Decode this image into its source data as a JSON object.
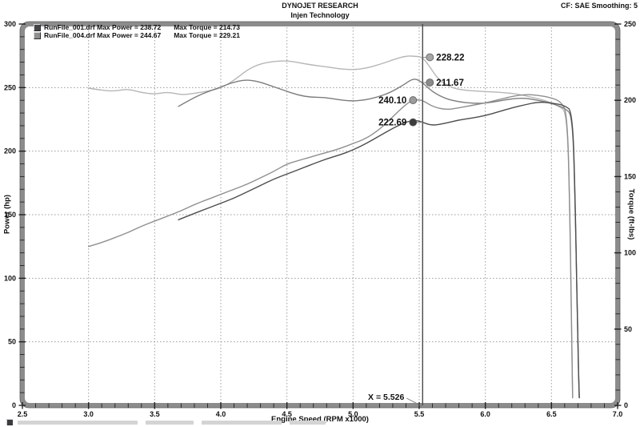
{
  "header": {
    "title": "DYNOJET RESEARCH",
    "subtitle": "Injen Technology",
    "corner": "CF: SAE  Smoothing: 5"
  },
  "legend": {
    "rows": [
      {
        "file_and_power": "RunFile_001.drf Max Power = 238.72",
        "torque": "Max Torque = 214.73",
        "chip_color": "#43454a"
      },
      {
        "file_and_power": "RunFile_004.drf Max Power = 244.67",
        "torque": "Max Torque = 229.21",
        "chip_color": "#8d8f92"
      }
    ]
  },
  "axes": {
    "left_title": "Power (hp)",
    "right_title": "Torque (ft-lbs)",
    "x_title": "Engine Speed (RPM x1000)"
  },
  "chart_data": {
    "type": "line",
    "title": "DYNOJET RESEARCH",
    "subtitle": "Injen Technology",
    "xlabel": "Engine Speed (RPM x1000)",
    "ylabel_left": "Power (hp)",
    "ylabel_right": "Torque (ft-lbs)",
    "x_range": [
      2.5,
      7.0
    ],
    "x_major_step": 0.5,
    "x_minor_step": 0.1,
    "y_left_range": [
      0,
      300
    ],
    "y_left_major_step": 50,
    "y_left_minor_step": 10,
    "y_right_range": [
      0,
      250
    ],
    "y_right_major_step": 50,
    "y_right_minor_step": 10,
    "grid": "dotted",
    "legend_position": "top-left",
    "x_tick_labels": [
      "2.5",
      "3.0",
      "3.5",
      "4.0",
      "4.5",
      "5.0",
      "5.5",
      "6.0",
      "6.5",
      "7.0"
    ],
    "y_left_tick_labels": [
      "0",
      "50",
      "100",
      "150",
      "200",
      "250",
      "300"
    ],
    "y_right_tick_labels": [
      "0",
      "50",
      "100",
      "150",
      "200",
      "250"
    ],
    "cursor": {
      "x": 5.526,
      "label": "X = 5.526"
    },
    "series": [
      {
        "name": "RunFile_004.drf Torque",
        "axis": "right",
        "color": "#b6b6b6",
        "max": 229.21,
        "points": [
          [
            3.0,
            208
          ],
          [
            3.1,
            206.5
          ],
          [
            3.2,
            206
          ],
          [
            3.3,
            207.5
          ],
          [
            3.4,
            205
          ],
          [
            3.5,
            204
          ],
          [
            3.6,
            205.5
          ],
          [
            3.7,
            203.5
          ],
          [
            3.8,
            204.5
          ],
          [
            3.9,
            206
          ],
          [
            4.0,
            208
          ],
          [
            4.1,
            213
          ],
          [
            4.2,
            220
          ],
          [
            4.3,
            224
          ],
          [
            4.4,
            225.5
          ],
          [
            4.5,
            226
          ],
          [
            4.6,
            224.5
          ],
          [
            4.7,
            223
          ],
          [
            4.8,
            222
          ],
          [
            4.9,
            220.5
          ],
          [
            5.0,
            220
          ],
          [
            5.1,
            221
          ],
          [
            5.2,
            223.5
          ],
          [
            5.3,
            226.5
          ],
          [
            5.4,
            229.21
          ],
          [
            5.48,
            228.8
          ],
          [
            5.526,
            228.22
          ],
          [
            5.58,
            222
          ],
          [
            5.65,
            213
          ],
          [
            5.75,
            208
          ],
          [
            5.85,
            206.5
          ],
          [
            5.95,
            206
          ],
          [
            6.05,
            205.5
          ],
          [
            6.15,
            205
          ],
          [
            6.25,
            204
          ],
          [
            6.35,
            202
          ],
          [
            6.45,
            200
          ],
          [
            6.55,
            196.5
          ],
          [
            6.62,
            192
          ],
          [
            6.64,
            120
          ],
          [
            6.655,
            30
          ],
          [
            6.66,
            5
          ]
        ]
      },
      {
        "name": "RunFile_001.drf Torque",
        "axis": "right",
        "color": "#7d7d7d",
        "max": 214.73,
        "points": [
          [
            3.68,
            196
          ],
          [
            3.78,
            201
          ],
          [
            3.88,
            205
          ],
          [
            3.98,
            208
          ],
          [
            4.08,
            211.5
          ],
          [
            4.18,
            213.5
          ],
          [
            4.28,
            212.5
          ],
          [
            4.38,
            209.5
          ],
          [
            4.48,
            206.5
          ],
          [
            4.58,
            203.5
          ],
          [
            4.68,
            202
          ],
          [
            4.78,
            202
          ],
          [
            4.88,
            200.5
          ],
          [
            4.98,
            199.5
          ],
          [
            5.08,
            200
          ],
          [
            5.18,
            202
          ],
          [
            5.28,
            205
          ],
          [
            5.38,
            210
          ],
          [
            5.46,
            214.73
          ],
          [
            5.526,
            211.67
          ],
          [
            5.6,
            205.5
          ],
          [
            5.7,
            201
          ],
          [
            5.8,
            199
          ],
          [
            5.9,
            198
          ],
          [
            6.0,
            198
          ],
          [
            6.1,
            199.5
          ],
          [
            6.2,
            201
          ],
          [
            6.3,
            201.5
          ],
          [
            6.4,
            200
          ],
          [
            6.5,
            198
          ],
          [
            6.6,
            195
          ],
          [
            6.66,
            190
          ],
          [
            6.68,
            130
          ],
          [
            6.7,
            40
          ],
          [
            6.71,
            5
          ]
        ]
      },
      {
        "name": "RunFile_004.drf Power",
        "axis": "left",
        "color": "#8f8f8f",
        "max": 244.67,
        "points": [
          [
            3.0,
            125
          ],
          [
            3.1,
            128
          ],
          [
            3.2,
            132
          ],
          [
            3.3,
            136
          ],
          [
            3.4,
            141
          ],
          [
            3.5,
            145
          ],
          [
            3.6,
            149
          ],
          [
            3.7,
            153
          ],
          [
            3.8,
            158
          ],
          [
            3.9,
            162
          ],
          [
            4.0,
            166
          ],
          [
            4.1,
            170
          ],
          [
            4.2,
            174
          ],
          [
            4.3,
            179
          ],
          [
            4.4,
            184
          ],
          [
            4.5,
            190
          ],
          [
            4.6,
            193
          ],
          [
            4.7,
            196
          ],
          [
            4.8,
            199
          ],
          [
            4.9,
            202
          ],
          [
            5.0,
            206
          ],
          [
            5.1,
            210
          ],
          [
            5.2,
            217
          ],
          [
            5.3,
            227
          ],
          [
            5.4,
            237
          ],
          [
            5.46,
            240.5
          ],
          [
            5.526,
            240.1
          ],
          [
            5.6,
            235
          ],
          [
            5.7,
            232.5
          ],
          [
            5.8,
            234
          ],
          [
            5.9,
            236
          ],
          [
            6.0,
            238
          ],
          [
            6.1,
            240.5
          ],
          [
            6.2,
            243
          ],
          [
            6.3,
            244.67
          ],
          [
            6.4,
            244
          ],
          [
            6.5,
            242
          ],
          [
            6.57,
            239
          ],
          [
            6.62,
            230
          ],
          [
            6.64,
            150
          ],
          [
            6.655,
            40
          ],
          [
            6.66,
            6
          ]
        ]
      },
      {
        "name": "RunFile_001.drf Power",
        "axis": "left",
        "color": "#4d4d4d",
        "max": 238.72,
        "points": [
          [
            3.68,
            146
          ],
          [
            3.8,
            151
          ],
          [
            3.9,
            155
          ],
          [
            4.0,
            159
          ],
          [
            4.1,
            163
          ],
          [
            4.2,
            168
          ],
          [
            4.3,
            173
          ],
          [
            4.4,
            178
          ],
          [
            4.5,
            182
          ],
          [
            4.6,
            186
          ],
          [
            4.7,
            190
          ],
          [
            4.8,
            194
          ],
          [
            4.9,
            197
          ],
          [
            5.0,
            201
          ],
          [
            5.1,
            206
          ],
          [
            5.2,
            212
          ],
          [
            5.3,
            218
          ],
          [
            5.4,
            223
          ],
          [
            5.47,
            224.5
          ],
          [
            5.526,
            222.69
          ],
          [
            5.6,
            220
          ],
          [
            5.7,
            222
          ],
          [
            5.8,
            224.5
          ],
          [
            5.9,
            226
          ],
          [
            6.0,
            228
          ],
          [
            6.1,
            231
          ],
          [
            6.2,
            234
          ],
          [
            6.3,
            236.5
          ],
          [
            6.4,
            238.72
          ],
          [
            6.5,
            238
          ],
          [
            6.6,
            236
          ],
          [
            6.66,
            231
          ],
          [
            6.68,
            160
          ],
          [
            6.7,
            45
          ],
          [
            6.71,
            6
          ]
        ]
      }
    ],
    "markers": [
      {
        "label": "228.22",
        "axis": "right",
        "value": 228.22,
        "side": "right",
        "color": "#a6a6a6"
      },
      {
        "label": "211.67",
        "axis": "right",
        "value": 211.67,
        "side": "right",
        "color": "#8a8a8a"
      },
      {
        "label": "240.10",
        "axis": "left",
        "value": 240.1,
        "side": "left",
        "color": "#9b9b9b"
      },
      {
        "label": "222.69",
        "axis": "left",
        "value": 222.69,
        "side": "left",
        "color": "#3c3c3c"
      }
    ]
  }
}
